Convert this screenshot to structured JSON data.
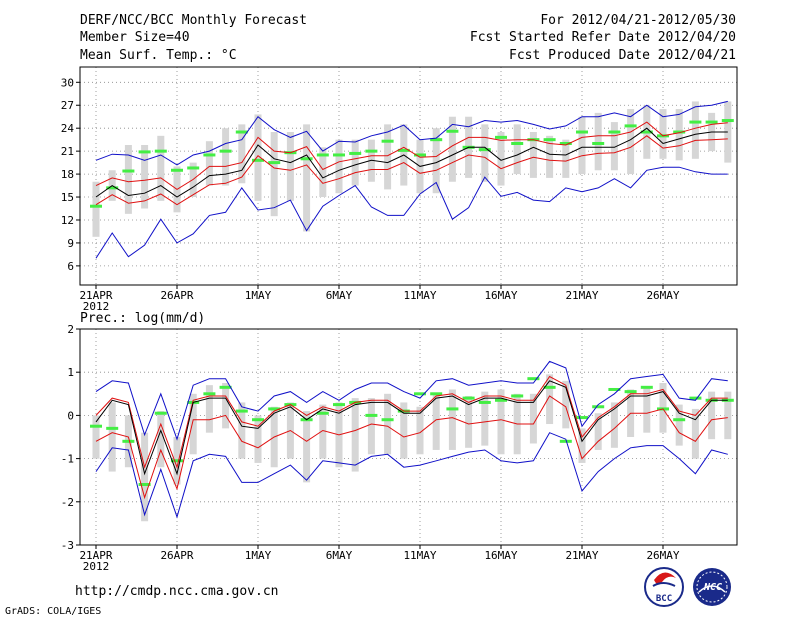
{
  "header": {
    "title": "DERF/NCC/BCC Monthly Forecast",
    "member_size": "Member Size=40",
    "variable1": "Mean Surf. Temp.: °C",
    "period": "For 2012/04/21-2012/05/30",
    "fcst_started": "Fcst Started Refer Date 2012/04/20",
    "fcst_produced": "Fcst Produced Date 2012/04/21"
  },
  "footer": {
    "url": "http://cmdp.ncc.cma.gov.cn",
    "grads_credit": "GrADS: COLA/IGES",
    "logo_left_text": "BCC",
    "logo_right_text": "NCC"
  },
  "colors": {
    "ens_mean": "#000000",
    "ens_spread": "#e01010",
    "ens_extreme": "#1010c8",
    "climatology": "#44ee44",
    "ens_range_box": "#d6d6d6"
  },
  "chart_data": [
    {
      "type": "line",
      "title": "Mean Surf. Temp.: °C",
      "ylabel": "°C",
      "ylim": [
        3.5,
        32
      ],
      "yticks": [
        6,
        9,
        12,
        15,
        18,
        21,
        24,
        27,
        30
      ],
      "grid": true,
      "x": [
        1,
        2,
        3,
        4,
        5,
        6,
        7,
        8,
        9,
        10,
        11,
        12,
        13,
        14,
        15,
        16,
        17,
        18,
        19,
        20,
        21,
        22,
        23,
        24,
        25,
        26,
        27,
        28,
        29,
        30,
        31,
        32,
        33,
        34,
        35,
        36,
        37,
        38,
        39,
        40
      ],
      "xticks": [
        {
          "day": 1,
          "label": "21APR",
          "sub": "2012"
        },
        {
          "day": 6,
          "label": "26APR"
        },
        {
          "day": 11,
          "label": "1MAY"
        },
        {
          "day": 16,
          "label": "6MAY"
        },
        {
          "day": 21,
          "label": "11MAY"
        },
        {
          "day": 26,
          "label": "16MAY"
        },
        {
          "day": 31,
          "label": "21MAY"
        },
        {
          "day": 36,
          "label": "26MAY"
        }
      ],
      "series": [
        {
          "name": "ensemble max",
          "role": "max",
          "values": [
            19.8,
            20.6,
            20.5,
            19.8,
            20.5,
            19.2,
            20.5,
            21.0,
            22.0,
            22.5,
            25.5,
            23.8,
            22.8,
            23.6,
            21.0,
            22.3,
            22.2,
            23.0,
            23.5,
            24.4,
            22.5,
            22.7,
            24.5,
            24.2,
            25.0,
            24.8,
            25.0,
            24.5,
            23.9,
            24.3,
            25.5,
            25.5,
            26.0,
            25.5,
            27.0,
            25.5,
            25.8,
            26.8,
            27.0,
            27.5
          ]
        },
        {
          "name": "ensemble upper",
          "role": "upper",
          "values": [
            16.5,
            17.5,
            17.0,
            17.2,
            17.5,
            16.0,
            17.3,
            19.0,
            19.0,
            19.5,
            22.8,
            21.0,
            20.8,
            21.6,
            18.6,
            19.6,
            20.0,
            20.4,
            20.4,
            21.5,
            20.2,
            20.3,
            21.7,
            22.8,
            22.8,
            22.4,
            22.5,
            22.5,
            22.0,
            21.8,
            22.8,
            23.0,
            23.0,
            23.5,
            24.8,
            23.0,
            23.4,
            24.0,
            24.5,
            24.7
          ]
        },
        {
          "name": "ensemble mean",
          "role": "mean",
          "values": [
            15.0,
            16.5,
            15.2,
            15.5,
            16.5,
            15.0,
            16.3,
            17.8,
            18.0,
            18.5,
            21.8,
            20.0,
            19.5,
            20.5,
            17.5,
            18.5,
            19.2,
            19.8,
            19.5,
            20.5,
            19.0,
            19.5,
            20.5,
            21.5,
            21.5,
            19.8,
            20.5,
            21.5,
            20.6,
            20.5,
            21.5,
            21.5,
            21.5,
            22.5,
            24.0,
            22.0,
            22.6,
            23.2,
            23.5,
            23.5
          ]
        },
        {
          "name": "ensemble lower",
          "role": "lower",
          "values": [
            14.0,
            15.3,
            14.2,
            14.5,
            15.4,
            14.0,
            15.3,
            16.6,
            16.8,
            17.6,
            20.4,
            18.8,
            18.5,
            19.2,
            16.8,
            17.4,
            18.2,
            18.6,
            18.6,
            19.5,
            18.1,
            18.5,
            19.5,
            20.5,
            20.2,
            18.7,
            19.5,
            20.2,
            19.8,
            19.7,
            20.4,
            20.7,
            20.8,
            21.5,
            23.0,
            21.4,
            21.7,
            22.4,
            22.5,
            22.6
          ]
        },
        {
          "name": "ensemble min",
          "role": "min",
          "values": [
            7.0,
            10.3,
            7.2,
            8.7,
            12.1,
            9.0,
            10.2,
            12.6,
            13.0,
            16.2,
            13.3,
            13.6,
            14.6,
            10.6,
            13.8,
            15.2,
            16.5,
            13.7,
            12.6,
            12.6,
            15.4,
            16.9,
            12.1,
            13.6,
            17.6,
            15.1,
            15.6,
            14.6,
            14.4,
            16.2,
            15.7,
            16.2,
            17.4,
            16.2,
            18.5,
            18.9,
            18.9,
            18.3,
            18.0,
            18.0
          ]
        }
      ],
      "climatology": [
        13.8,
        16.2,
        18.4,
        20.9,
        21.0,
        18.5,
        18.8,
        20.5,
        21.0,
        23.5,
        19.8,
        19.5,
        20.8,
        20.0,
        20.5,
        20.5,
        20.7,
        21.0,
        22.3,
        21.1,
        20.5,
        22.5,
        23.6,
        21.5,
        21.2,
        22.8,
        22.0,
        22.5,
        22.5,
        22.0,
        23.5,
        22.0,
        23.5,
        24.3,
        23.5,
        23.0,
        23.5,
        24.8,
        24.8,
        25.0
      ],
      "box_low": [
        9.8,
        14.5,
        12.8,
        13.5,
        14.5,
        13.0,
        15.0,
        16.5,
        16.5,
        16.8,
        14.5,
        12.5,
        14.5,
        10.5,
        15.0,
        15.5,
        16.5,
        17.0,
        16.0,
        16.5,
        15.5,
        15.5,
        17.0,
        17.5,
        17.0,
        16.5,
        18.0,
        17.5,
        17.5,
        17.5,
        18.0,
        18.5,
        18.5,
        18.0,
        20.0,
        20.0,
        19.8,
        20.0,
        21.0,
        19.5
      ],
      "box_high": [
        17.0,
        18.5,
        21.8,
        21.8,
        23.0,
        19.0,
        19.5,
        22.3,
        24.0,
        24.5,
        25.8,
        23.5,
        23.5,
        24.5,
        21.5,
        22.5,
        22.5,
        22.5,
        24.5,
        24.5,
        22.5,
        24.0,
        25.5,
        25.5,
        24.5,
        23.5,
        24.5,
        23.5,
        23.0,
        22.5,
        25.5,
        26.0,
        24.8,
        26.5,
        27.0,
        26.5,
        26.5,
        27.5,
        26.0,
        27.5
      ]
    },
    {
      "type": "line",
      "title": "Prec.: log(mm/d)",
      "ylabel": "log(mm/d)",
      "ylim": [
        -3,
        2
      ],
      "yticks": [
        -3,
        -2,
        -1,
        0,
        1,
        2
      ],
      "grid": true,
      "x": [
        1,
        2,
        3,
        4,
        5,
        6,
        7,
        8,
        9,
        10,
        11,
        12,
        13,
        14,
        15,
        16,
        17,
        18,
        19,
        20,
        21,
        22,
        23,
        24,
        25,
        26,
        27,
        28,
        29,
        30,
        31,
        32,
        33,
        34,
        35,
        36,
        37,
        38,
        39,
        40
      ],
      "xticks": [
        {
          "day": 1,
          "label": "21APR",
          "sub": "2012"
        },
        {
          "day": 6,
          "label": "26APR"
        },
        {
          "day": 11,
          "label": "1MAY"
        },
        {
          "day": 16,
          "label": "6MAY"
        },
        {
          "day": 21,
          "label": "11MAY"
        },
        {
          "day": 26,
          "label": "16MAY"
        },
        {
          "day": 31,
          "label": "21MAY"
        },
        {
          "day": 36,
          "label": "26MAY"
        }
      ],
      "series": [
        {
          "name": "ensemble max",
          "role": "max",
          "values": [
            0.55,
            0.8,
            0.75,
            -0.45,
            0.5,
            -0.55,
            0.7,
            0.85,
            0.85,
            0.2,
            0.1,
            0.45,
            0.55,
            0.3,
            0.55,
            0.35,
            0.6,
            0.75,
            0.75,
            0.55,
            0.4,
            0.8,
            0.85,
            0.7,
            0.75,
            0.8,
            0.75,
            0.75,
            1.25,
            1.1,
            -0.25,
            0.25,
            0.5,
            0.85,
            0.9,
            0.95,
            0.4,
            0.35,
            0.85,
            0.8
          ]
        },
        {
          "name": "ensemble upper",
          "role": "upper",
          "values": [
            0.0,
            0.4,
            0.3,
            -1.2,
            -0.2,
            -1.2,
            0.35,
            0.45,
            0.45,
            -0.15,
            -0.25,
            0.1,
            0.25,
            0.0,
            0.2,
            0.1,
            0.3,
            0.35,
            0.35,
            0.1,
            0.1,
            0.45,
            0.5,
            0.3,
            0.45,
            0.45,
            0.35,
            0.35,
            0.9,
            0.7,
            -0.5,
            -0.05,
            0.2,
            0.5,
            0.5,
            0.6,
            0.1,
            0.0,
            0.4,
            0.4
          ]
        },
        {
          "name": "ensemble mean",
          "role": "mean",
          "values": [
            -0.15,
            0.35,
            0.25,
            -1.35,
            -0.35,
            -1.35,
            0.3,
            0.4,
            0.4,
            -0.25,
            -0.3,
            0.05,
            0.2,
            -0.1,
            0.15,
            0.05,
            0.25,
            0.3,
            0.3,
            0.05,
            0.05,
            0.4,
            0.45,
            0.25,
            0.4,
            0.4,
            0.3,
            0.3,
            0.8,
            0.65,
            -0.6,
            -0.1,
            0.15,
            0.45,
            0.45,
            0.55,
            0.05,
            -0.1,
            0.35,
            0.35
          ]
        },
        {
          "name": "ensemble lower",
          "role": "lower",
          "values": [
            -0.6,
            -0.4,
            -0.5,
            -1.9,
            -0.8,
            -1.7,
            -0.1,
            -0.1,
            0.0,
            -0.6,
            -0.75,
            -0.5,
            -0.35,
            -0.6,
            -0.35,
            -0.45,
            -0.35,
            -0.2,
            -0.25,
            -0.5,
            -0.4,
            -0.1,
            -0.05,
            -0.2,
            -0.15,
            -0.1,
            -0.2,
            -0.2,
            0.45,
            0.2,
            -1.0,
            -0.6,
            -0.3,
            0.05,
            0.05,
            0.15,
            -0.4,
            -0.6,
            -0.1,
            -0.05
          ]
        },
        {
          "name": "ensemble min",
          "role": "min",
          "values": [
            -1.3,
            -0.75,
            -0.8,
            -2.3,
            -1.25,
            -2.35,
            -1.05,
            -0.9,
            -0.95,
            -1.55,
            -1.55,
            -1.35,
            -1.15,
            -1.5,
            -1.05,
            -1.1,
            -1.15,
            -0.95,
            -0.9,
            -1.2,
            -1.15,
            -1.05,
            -0.95,
            -0.85,
            -0.8,
            -1.05,
            -1.1,
            -1.05,
            -0.4,
            -0.55,
            -1.75,
            -1.3,
            -1.0,
            -0.75,
            -0.7,
            -0.7,
            -1.0,
            -1.35,
            -0.8,
            -0.9
          ]
        }
      ],
      "climatology": [
        -0.25,
        -0.3,
        -0.6,
        -1.6,
        0.05,
        -1.05,
        0.3,
        0.5,
        0.65,
        0.1,
        -0.1,
        0.15,
        0.25,
        -0.1,
        0.05,
        0.25,
        0.3,
        0.0,
        -0.1,
        0.1,
        0.5,
        0.5,
        0.15,
        0.4,
        0.3,
        0.35,
        0.45,
        0.85,
        0.65,
        -0.6,
        -0.05,
        0.2,
        0.6,
        0.55,
        0.65,
        0.15,
        -0.1,
        0.4,
        0.35,
        0.35
      ],
      "box_low": [
        -1.0,
        -1.3,
        -1.2,
        -2.45,
        -1.2,
        -1.6,
        -0.9,
        -0.4,
        -0.3,
        -1.0,
        -1.1,
        -1.2,
        -1.0,
        -1.55,
        -1.0,
        -1.2,
        -1.3,
        -0.9,
        -0.9,
        -1.0,
        -0.9,
        -0.8,
        -0.8,
        -0.75,
        -0.7,
        -0.9,
        -0.9,
        -0.65,
        -0.2,
        -0.3,
        -1.1,
        -0.8,
        -0.75,
        -0.5,
        -0.4,
        -0.4,
        -0.7,
        -1.0,
        -0.55,
        -0.55
      ],
      "box_high": [
        0.0,
        0.3,
        0.0,
        -0.4,
        0.1,
        -0.5,
        0.5,
        0.7,
        0.75,
        0.3,
        0.0,
        0.2,
        0.3,
        0.1,
        0.25,
        0.3,
        0.4,
        0.4,
        0.5,
        0.3,
        0.2,
        0.5,
        0.6,
        0.45,
        0.55,
        0.6,
        0.5,
        0.5,
        0.95,
        0.8,
        -0.3,
        0.05,
        0.3,
        0.6,
        0.65,
        0.75,
        0.25,
        0.15,
        0.55,
        0.55
      ]
    }
  ]
}
